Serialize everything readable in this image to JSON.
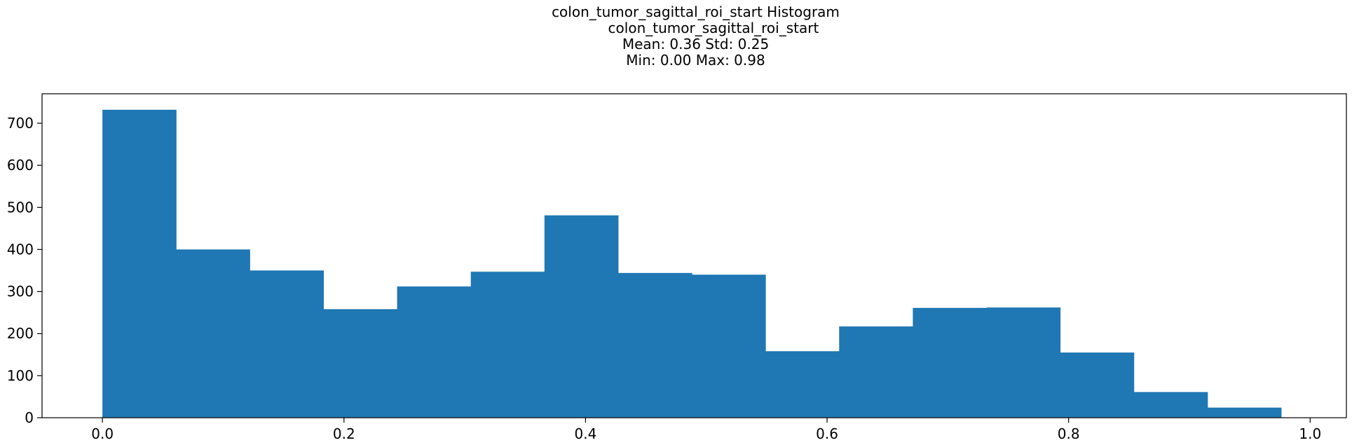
{
  "chart_data": {
    "type": "bar",
    "title_lines": [
      "colon_tumor_sagittal_roi_start Histogram",
      "        colon_tumor_sagittal_roi_start",
      "Mean: 0.36 Std: 0.25",
      "Min: 0.00 Max: 0.98"
    ],
    "xlabel": "",
    "ylabel": "",
    "xlim": [
      -0.05,
      1.03
    ],
    "ylim": [
      0,
      770
    ],
    "bin_edges": [
      0.0,
      0.061,
      0.122,
      0.183,
      0.244,
      0.305,
      0.366,
      0.427,
      0.488,
      0.549,
      0.61,
      0.671,
      0.732,
      0.793,
      0.854,
      0.915,
      0.976
    ],
    "values": [
      732,
      400,
      350,
      258,
      312,
      347,
      481,
      344,
      340,
      158,
      217,
      261,
      262,
      155,
      61,
      24
    ],
    "xticks": [
      {
        "value": 0.0,
        "label": "0.0"
      },
      {
        "value": 0.2,
        "label": "0.2"
      },
      {
        "value": 0.4,
        "label": "0.4"
      },
      {
        "value": 0.6,
        "label": "0.6"
      },
      {
        "value": 0.8,
        "label": "0.8"
      },
      {
        "value": 1.0,
        "label": "1.0"
      }
    ],
    "yticks": [
      {
        "value": 0,
        "label": "0"
      },
      {
        "value": 100,
        "label": "100"
      },
      {
        "value": 200,
        "label": "200"
      },
      {
        "value": 300,
        "label": "300"
      },
      {
        "value": 400,
        "label": "400"
      },
      {
        "value": 500,
        "label": "500"
      },
      {
        "value": 600,
        "label": "600"
      },
      {
        "value": 700,
        "label": "700"
      }
    ],
    "bar_color": "#1f77b4",
    "grid": false,
    "legend": "none"
  }
}
